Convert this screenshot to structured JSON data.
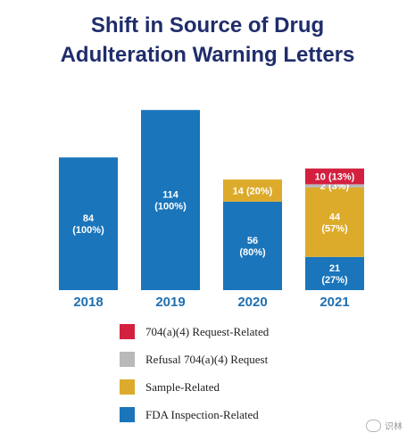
{
  "title_line1": "Shift in Source of Drug",
  "title_line2": "Adulteration Warning Letters",
  "chart_data": {
    "type": "bar",
    "stacked": true,
    "title": "Shift in Source of Drug Adulteration Warning Letters",
    "categories": [
      "2018",
      "2019",
      "2020",
      "2021"
    ],
    "series": [
      {
        "name": "FDA Inspection-Related",
        "color": "#1a75bb",
        "values": [
          84,
          114,
          56,
          21
        ],
        "labels": [
          [
            "84",
            "(100%)"
          ],
          [
            "114",
            "(100%)"
          ],
          [
            "56",
            "(80%)"
          ],
          [
            "21",
            "(27%)"
          ]
        ]
      },
      {
        "name": "Sample-Related",
        "color": "#ddab2b",
        "values": [
          0,
          0,
          14,
          44
        ],
        "labels": [
          null,
          null,
          [
            "14 (20%)"
          ],
          [
            "44",
            "(57%)"
          ]
        ]
      },
      {
        "name": "Refusal 704(a)(4) Request",
        "color": "#b9b9b9",
        "values": [
          0,
          0,
          0,
          2
        ],
        "labels": [
          null,
          null,
          null,
          [
            "2 (3%)"
          ]
        ]
      },
      {
        "name": "704(a)(4) Request-Related",
        "color": "#d4203f",
        "values": [
          0,
          0,
          0,
          10
        ],
        "labels": [
          null,
          null,
          null,
          [
            "10 (13%)"
          ]
        ]
      }
    ],
    "legend_order": [
      "704(a)(4) Request-Related",
      "Refusal 704(a)(4) Request",
      "Sample-Related",
      "FDA Inspection-Related"
    ],
    "legend_position": "bottom",
    "grid": false
  },
  "watermark": "识林"
}
